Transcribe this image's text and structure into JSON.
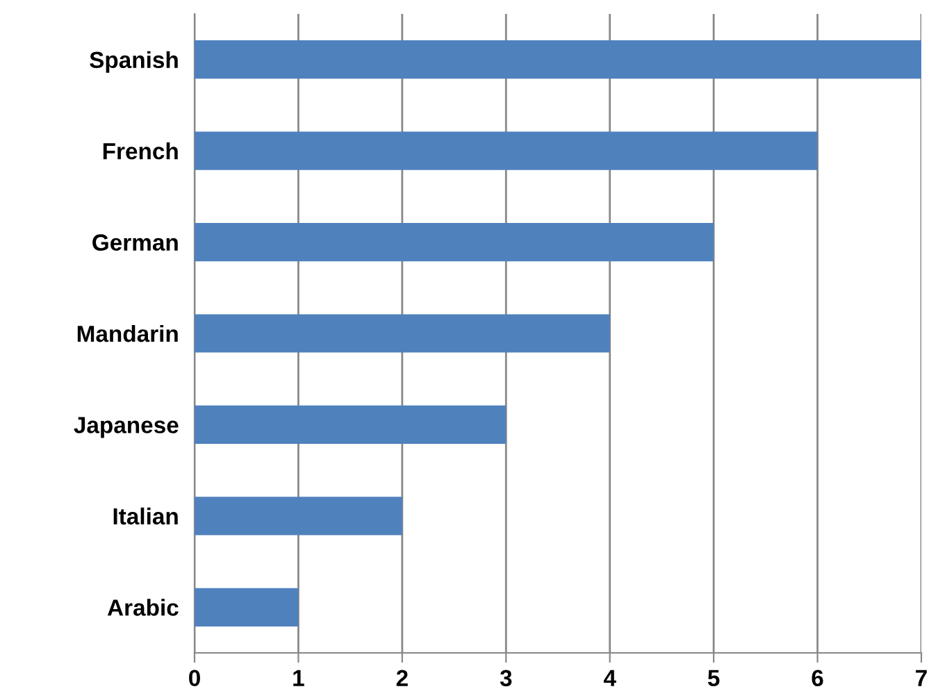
{
  "chart_data": {
    "type": "bar",
    "orientation": "horizontal",
    "categories": [
      "Spanish",
      "French",
      "German",
      "Mandarin",
      "Japanese",
      "Italian",
      "Arabic"
    ],
    "values": [
      7,
      6,
      5,
      4,
      3,
      2,
      1
    ],
    "color": "#4f81bd",
    "xlim": [
      0,
      7
    ],
    "xticks": [
      0,
      1,
      2,
      3,
      4,
      5,
      6,
      7
    ],
    "grid": "x",
    "legend": false
  }
}
